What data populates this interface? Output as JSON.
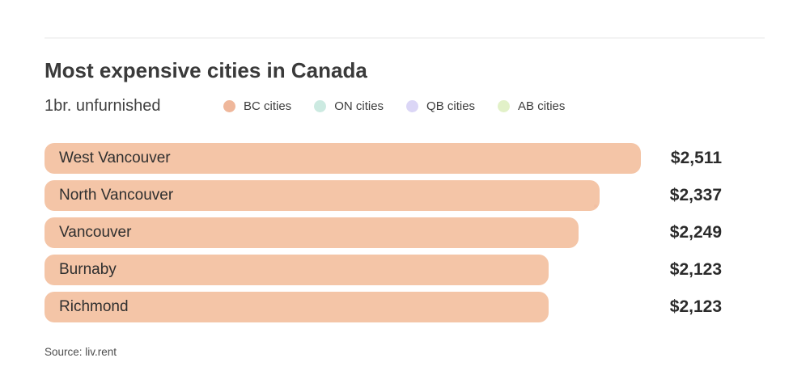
{
  "header": {
    "title": "Most expensive cities in Canada",
    "subtitle": "1br. unfurnished"
  },
  "legend": [
    {
      "label": "BC cities",
      "color": "#efb79b"
    },
    {
      "label": "ON cities",
      "color": "#cceae1"
    },
    {
      "label": "QB cities",
      "color": "#dbd6f6"
    },
    {
      "label": "AB cities",
      "color": "#e2f1c8"
    }
  ],
  "chart_data": {
    "type": "bar",
    "orientation": "horizontal",
    "title": "Most expensive cities in Canada",
    "subtitle": "1br. unfurnished",
    "categories": [
      "West Vancouver",
      "North Vancouver",
      "Vancouver",
      "Burnaby",
      "Richmond"
    ],
    "values": [
      2511,
      2337,
      2249,
      2123,
      2123
    ],
    "value_labels": [
      "$2,511",
      "$2,337",
      "$2,249",
      "$2,123",
      "$2,123"
    ],
    "series_name": "BC cities",
    "bar_color": "#f4c5a7",
    "xlim": [
      0,
      2511
    ],
    "grid": false,
    "legend_entries": [
      "BC cities",
      "ON cities",
      "QB cities",
      "AB cities"
    ],
    "legend_position": "top"
  },
  "footer": {
    "source": "Source: liv.rent"
  }
}
